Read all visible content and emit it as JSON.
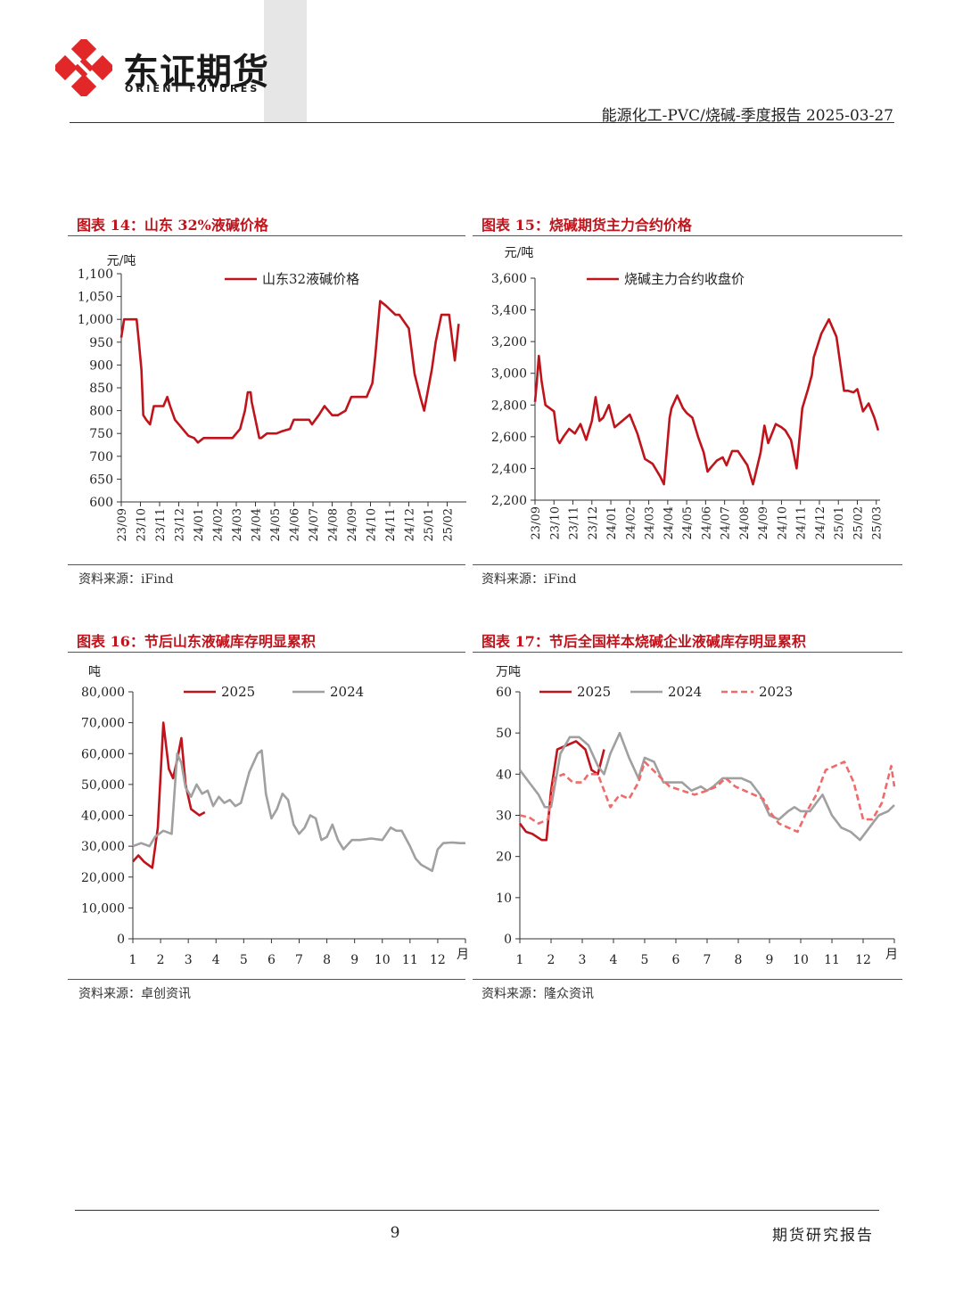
{
  "header": {
    "brand_cn": "东证期货",
    "brand_en": "ORIENT FUTURES",
    "report_title": "能源化工-PVC/烧碱-季度报告 2025-03-27"
  },
  "colors": {
    "red": "#c0141c",
    "gray": "#a0a0a0",
    "salmon": "#ef6b6b",
    "brand": "#e12728"
  },
  "charts": [
    {
      "title": "图表 14：山东 32%液碱价格",
      "source": "资料来源：iFind"
    },
    {
      "title": "图表 15：烧碱期货主力合约价格",
      "source": "资料来源：iFind"
    },
    {
      "title": "图表 16：节后山东液碱库存明显累积",
      "source": "资料来源：卓创资讯"
    },
    {
      "title": "图表 17：节后全国样本烧碱企业液碱库存明显累积",
      "source": "资料来源：隆众资讯"
    }
  ],
  "footer": {
    "page": "9",
    "label": "期货研究报告"
  },
  "chart_data": [
    {
      "type": "line",
      "unit": "元/吨",
      "ylim": [
        600,
        1100
      ],
      "yticks": [
        "600",
        "650",
        "700",
        "750",
        "800",
        "850",
        "900",
        "950",
        "1,000",
        "1,050",
        "1,100"
      ],
      "x_ticks": [
        "23/09",
        "23/10",
        "23/11",
        "23/12",
        "24/01",
        "24/02",
        "24/03",
        "24/04",
        "24/05",
        "24/06",
        "24/07",
        "24/08",
        "24/09",
        "24/10",
        "24/11",
        "24/12",
        "25/01",
        "25/02"
      ],
      "x_range": [
        0,
        18
      ],
      "series": [
        {
          "name": "山东32液碱价格",
          "color": "#c0141c",
          "x": [
            0,
            0.15,
            0.35,
            0.8,
            0.9,
            1.05,
            1.15,
            1.3,
            1.5,
            1.7,
            2.2,
            2.4,
            2.55,
            2.8,
            3.2,
            3.5,
            3.8,
            4,
            4.3,
            5.5,
            5.8,
            6.2,
            6.45,
            6.6,
            6.75,
            6.8,
            7.2,
            7.3,
            7.6,
            8.1,
            8.4,
            8.8,
            9,
            9.8,
            9.95,
            10.3,
            10.6,
            11,
            11.3,
            11.7,
            12,
            12.6,
            12.8,
            13.1,
            13.25,
            13.5,
            13.8,
            14.3,
            14.5,
            15,
            15.3,
            15.6,
            15.8,
            16.2,
            16.4,
            16.7,
            16.9,
            17.1,
            17.4,
            17.6
          ],
          "y": [
            960,
            1000,
            1000,
            1000,
            960,
            890,
            790,
            780,
            770,
            810,
            810,
            830,
            810,
            780,
            760,
            745,
            740,
            730,
            740,
            740,
            740,
            760,
            800,
            840,
            840,
            820,
            740,
            740,
            750,
            750,
            755,
            760,
            780,
            780,
            770,
            790,
            810,
            790,
            790,
            800,
            830,
            830,
            830,
            860,
            920,
            1040,
            1030,
            1010,
            1010,
            980,
            880,
            830,
            800,
            890,
            950,
            1010,
            1010,
            1010,
            910,
            990
          ]
        }
      ]
    },
    {
      "type": "line",
      "unit": "元/吨",
      "ylim": [
        2200,
        3600
      ],
      "yticks": [
        "2,200",
        "2,400",
        "2,600",
        "2,800",
        "3,000",
        "3,200",
        "3,400",
        "3,600"
      ],
      "x_ticks": [
        "23/09",
        "23/10",
        "23/11",
        "23/12",
        "24/01",
        "24/02",
        "24/03",
        "24/04",
        "24/05",
        "24/06",
        "24/07",
        "24/08",
        "24/09",
        "24/10",
        "24/11",
        "24/12",
        "25/01",
        "25/02",
        "25/03"
      ],
      "x_range": [
        0,
        18.2
      ],
      "series": [
        {
          "name": "烧碱主力合约收盘价",
          "color": "#c0141c",
          "x": [
            0,
            0.1,
            0.2,
            0.35,
            0.55,
            1,
            1.2,
            1.3,
            1.5,
            1.8,
            2.1,
            2.4,
            2.7,
            3,
            3.2,
            3.4,
            3.6,
            3.9,
            4.2,
            4.6,
            5,
            5.4,
            5.8,
            6.2,
            6.6,
            6.8,
            7.1,
            7.2,
            7.5,
            7.8,
            8,
            8.3,
            8.6,
            8.9,
            9.1,
            9.3,
            9.6,
            9.9,
            10.1,
            10.4,
            10.7,
            11.2,
            11.5,
            11.9,
            12.1,
            12.3,
            12.7,
            13,
            13.2,
            13.5,
            13.8,
            14.1,
            14.4,
            14.6,
            14.7,
            15.1,
            15.5,
            15.9,
            16.3,
            16.5,
            16.8,
            17,
            17.3,
            17.6,
            17.9,
            18.1
          ],
          "y": [
            2820,
            2950,
            3110,
            2950,
            2800,
            2760,
            2580,
            2560,
            2600,
            2650,
            2620,
            2680,
            2580,
            2700,
            2850,
            2700,
            2720,
            2800,
            2660,
            2700,
            2740,
            2620,
            2460,
            2430,
            2350,
            2300,
            2720,
            2780,
            2860,
            2780,
            2750,
            2720,
            2600,
            2500,
            2380,
            2410,
            2450,
            2470,
            2420,
            2510,
            2510,
            2420,
            2300,
            2500,
            2670,
            2560,
            2680,
            2660,
            2640,
            2580,
            2400,
            2780,
            2900,
            2990,
            3100,
            3250,
            3340,
            3230,
            2890,
            2890,
            2880,
            2900,
            2760,
            2810,
            2720,
            2640
          ]
        }
      ]
    },
    {
      "type": "line",
      "unit": "吨",
      "ylim": [
        0,
        80000
      ],
      "yticks": [
        "0",
        "10,000",
        "20,000",
        "30,000",
        "40,000",
        "50,000",
        "60,000",
        "70,000",
        "80,000"
      ],
      "xticks": [
        "1",
        "2",
        "3",
        "4",
        "5",
        "6",
        "7",
        "8",
        "9",
        "10",
        "11",
        "12"
      ],
      "x_unit": "月",
      "x_range": [
        1,
        13
      ],
      "series": [
        {
          "name": "2025",
          "color": "#c0141c",
          "dash": false,
          "x": [
            1,
            1.2,
            1.4,
            1.7,
            1.9,
            2.1,
            2.3,
            2.45,
            2.6,
            2.75,
            2.9,
            3.1,
            3.4,
            3.6
          ],
          "y": [
            25000,
            27000,
            25000,
            23000,
            36000,
            70000,
            55000,
            52000,
            58000,
            65000,
            50000,
            42000,
            40000,
            41000
          ]
        },
        {
          "name": "2024",
          "color": "#a0a0a0",
          "dash": false,
          "x": [
            1,
            1.3,
            1.6,
            1.8,
            2.1,
            2.4,
            2.6,
            2.75,
            2.9,
            3.1,
            3.3,
            3.5,
            3.7,
            3.9,
            4.1,
            4.3,
            4.5,
            4.7,
            4.9,
            5.2,
            5.5,
            5.65,
            5.8,
            6,
            6.2,
            6.4,
            6.6,
            6.8,
            7,
            7.2,
            7.4,
            7.6,
            7.8,
            8,
            8.2,
            8.4,
            8.6,
            8.9,
            9.2,
            9.6,
            10,
            10.3,
            10.5,
            10.7,
            11,
            11.2,
            11.4,
            11.6,
            11.8,
            12,
            12.2,
            12.5,
            12.8,
            13
          ],
          "y": [
            30000,
            31000,
            30000,
            33000,
            35000,
            34000,
            60000,
            57000,
            49000,
            46000,
            50000,
            47000,
            48000,
            43000,
            46000,
            44000,
            45000,
            43000,
            44000,
            54000,
            60000,
            61000,
            47000,
            39000,
            42000,
            47000,
            45000,
            37000,
            34000,
            36000,
            40000,
            39000,
            32000,
            33000,
            37000,
            32000,
            29000,
            32000,
            32000,
            32500,
            32000,
            36000,
            35000,
            35000,
            30000,
            26000,
            24000,
            23000,
            22000,
            29000,
            31000,
            31200,
            31000,
            31000
          ]
        }
      ]
    },
    {
      "type": "line",
      "unit": "万吨",
      "ylim": [
        0,
        60
      ],
      "yticks": [
        "0",
        "10",
        "20",
        "30",
        "40",
        "50",
        "60"
      ],
      "xticks": [
        "1",
        "2",
        "3",
        "4",
        "5",
        "6",
        "7",
        "8",
        "9",
        "10",
        "11",
        "12"
      ],
      "x_unit": "月",
      "x_range": [
        1,
        13
      ],
      "series": [
        {
          "name": "2025",
          "color": "#c0141c",
          "dash": false,
          "x": [
            1,
            1.2,
            1.4,
            1.7,
            1.85,
            2,
            2.2,
            2.5,
            2.8,
            3.1,
            3.3,
            3.5,
            3.7
          ],
          "y": [
            28,
            26,
            25.5,
            24,
            24,
            36,
            46,
            47,
            48,
            46,
            41,
            40,
            46
          ]
        },
        {
          "name": "2024",
          "color": "#a0a0a0",
          "dash": false,
          "x": [
            1,
            1.3,
            1.6,
            1.8,
            2,
            2.3,
            2.6,
            2.9,
            3.2,
            3.5,
            3.7,
            3.9,
            4.2,
            4.5,
            4.8,
            5,
            5.3,
            5.6,
            5.9,
            6.2,
            6.5,
            6.8,
            7,
            7.2,
            7.5,
            7.8,
            8.1,
            8.4,
            8.7,
            9,
            9.3,
            9.6,
            9.8,
            10,
            10.3,
            10.5,
            10.7,
            11,
            11.3,
            11.6,
            11.9,
            12.2,
            12.5,
            12.8,
            13
          ],
          "y": [
            41,
            38,
            35,
            32,
            32,
            45,
            49,
            49,
            47,
            42,
            40,
            45,
            50,
            44,
            39,
            44,
            43,
            38,
            38,
            38,
            36,
            37,
            36,
            37,
            39,
            39,
            39,
            38,
            35,
            30,
            29,
            31,
            32,
            31,
            31,
            33,
            35,
            30,
            27,
            26,
            24,
            27,
            30,
            31,
            32.5
          ]
        },
        {
          "name": "2023",
          "color": "#ef6b6b",
          "dash": true,
          "x": [
            1,
            1.3,
            1.6,
            1.9,
            2.1,
            2.4,
            2.7,
            3,
            3.2,
            3.5,
            3.7,
            3.9,
            4.2,
            4.5,
            4.8,
            5,
            5.4,
            5.8,
            6.2,
            6.6,
            7,
            7.3,
            7.6,
            7.9,
            8.2,
            8.5,
            8.8,
            9,
            9.3,
            9.6,
            9.9,
            10.2,
            10.5,
            10.8,
            11.1,
            11.4,
            11.7,
            12,
            12.3,
            12.6,
            12.9,
            13
          ],
          "y": [
            30,
            29.5,
            28,
            29,
            39,
            40,
            38,
            38,
            40,
            40,
            36,
            32,
            35,
            34,
            38,
            43,
            40,
            37,
            36,
            35,
            36,
            37,
            39,
            37,
            36,
            35,
            34,
            31,
            28,
            27,
            26,
            31,
            35,
            41,
            42,
            43,
            38,
            29,
            29,
            33,
            42,
            37
          ]
        }
      ]
    }
  ]
}
